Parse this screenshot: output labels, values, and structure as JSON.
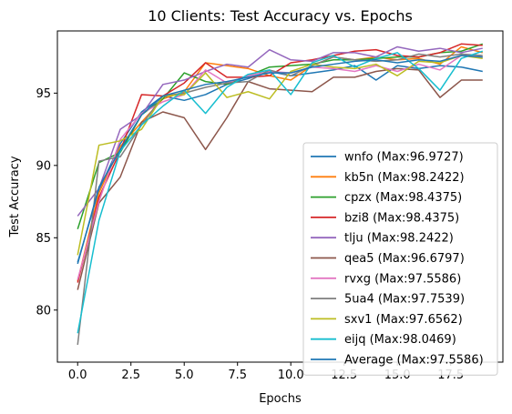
{
  "chart_data": {
    "type": "line",
    "title": "10 Clients: Test Accuracy vs. Epochs",
    "xlabel": "Epochs",
    "ylabel": "Test Accuracy",
    "xlim": [
      -0.95,
      19.95
    ],
    "ylim": [
      76.4,
      99.3
    ],
    "xticks": [
      0.0,
      2.5,
      5.0,
      7.5,
      10.0,
      12.5,
      15.0,
      17.5
    ],
    "xtick_labels": [
      "0.0",
      "2.5",
      "5.0",
      "7.5",
      "10.0",
      "12.5",
      "15.0",
      "17.5"
    ],
    "yticks": [
      80,
      85,
      90,
      95
    ],
    "ytick_labels": [
      "80",
      "85",
      "90",
      "95"
    ],
    "grid": false,
    "legend_position": "lower-right",
    "x": [
      0,
      1,
      2,
      3,
      4,
      5,
      6,
      7,
      8,
      9,
      10,
      11,
      12,
      13,
      14,
      15,
      16,
      17,
      18,
      19
    ],
    "series": [
      {
        "name": "wnfo (Max:96.9727)",
        "color": "#1f77b4",
        "values": [
          83.3,
          88.3,
          91.5,
          93.7,
          94.8,
          94.5,
          94.9,
          95.6,
          96.0,
          96.5,
          96.2,
          96.4,
          96.6,
          96.9,
          95.9,
          96.9,
          96.7,
          96.9,
          96.8,
          96.5
        ]
      },
      {
        "name": "kb5n (Max:98.2422)",
        "color": "#ff7f0e",
        "values": [
          82.0,
          88.1,
          91.3,
          93.0,
          94.6,
          95.1,
          97.1,
          96.9,
          96.7,
          96.2,
          95.9,
          96.9,
          97.5,
          97.3,
          97.5,
          97.3,
          97.4,
          97.0,
          98.2,
          97.8
        ]
      },
      {
        "name": "cpzx (Max:98.4375)",
        "color": "#2ca02c",
        "values": [
          85.6,
          90.2,
          90.9,
          93.5,
          94.6,
          96.4,
          95.8,
          95.6,
          96.2,
          96.8,
          96.9,
          97.0,
          97.3,
          97.3,
          97.4,
          97.5,
          97.5,
          97.8,
          97.9,
          98.4
        ]
      },
      {
        "name": "bzi8 (Max:98.4375)",
        "color": "#d62728",
        "values": [
          81.9,
          87.8,
          91.0,
          94.9,
          94.8,
          95.7,
          97.1,
          96.1,
          96.1,
          96.2,
          97.1,
          97.3,
          97.6,
          97.9,
          98.0,
          97.6,
          97.5,
          97.8,
          98.4,
          98.3
        ]
      },
      {
        "name": "tlju (Max:98.2422)",
        "color": "#9467bd",
        "values": [
          86.5,
          88.4,
          92.5,
          93.5,
          95.6,
          95.9,
          96.5,
          97.0,
          96.8,
          98.0,
          97.3,
          97.2,
          97.8,
          97.8,
          97.5,
          98.2,
          97.9,
          98.1,
          97.8,
          98.1
        ]
      },
      {
        "name": "qea5 (Max:96.6797)",
        "color": "#8c564b",
        "values": [
          81.4,
          87.4,
          89.2,
          93.0,
          93.7,
          93.3,
          91.1,
          93.3,
          95.8,
          95.3,
          95.2,
          95.1,
          96.1,
          96.1,
          96.5,
          96.7,
          96.6,
          94.7,
          95.9,
          95.9
        ]
      },
      {
        "name": "rvxg (Max:97.5586)",
        "color": "#e377c2",
        "values": [
          82.1,
          87.5,
          91.8,
          93.6,
          94.4,
          94.9,
          96.6,
          95.7,
          96.2,
          96.5,
          96.4,
          96.8,
          96.7,
          96.5,
          96.9,
          96.5,
          97.0,
          96.6,
          97.6,
          97.5
        ]
      },
      {
        "name": "5ua4 (Max:97.7539)",
        "color": "#7f7f7f",
        "values": [
          77.6,
          90.3,
          90.6,
          92.8,
          94.8,
          95.0,
          95.4,
          95.7,
          95.8,
          96.6,
          96.2,
          96.9,
          97.5,
          97.3,
          97.2,
          97.3,
          97.7,
          97.5,
          97.7,
          97.6
        ]
      },
      {
        "name": "sxv1 (Max:97.6562)",
        "color": "#bcbd22",
        "values": [
          83.8,
          91.4,
          91.7,
          92.5,
          94.8,
          94.9,
          96.4,
          94.7,
          95.1,
          94.6,
          96.5,
          97.0,
          96.8,
          96.7,
          97.0,
          96.2,
          97.2,
          97.1,
          97.6,
          97.4
        ]
      },
      {
        "name": "eijq (Max:98.0469)",
        "color": "#17becf",
        "values": [
          78.4,
          86.2,
          91.0,
          92.8,
          94.1,
          95.2,
          93.6,
          95.4,
          96.3,
          96.6,
          94.9,
          97.1,
          97.6,
          96.8,
          97.4,
          97.8,
          96.7,
          95.2,
          97.4,
          97.9
        ]
      },
      {
        "name": "Average (Max:97.5586)",
        "color": "#1f77b4",
        "values": [
          83.2,
          88.5,
          91.1,
          93.5,
          94.8,
          95.2,
          95.6,
          95.8,
          96.1,
          96.4,
          96.4,
          96.8,
          97.0,
          97.2,
          97.3,
          97.1,
          97.3,
          97.2,
          97.6,
          97.5
        ]
      }
    ]
  }
}
